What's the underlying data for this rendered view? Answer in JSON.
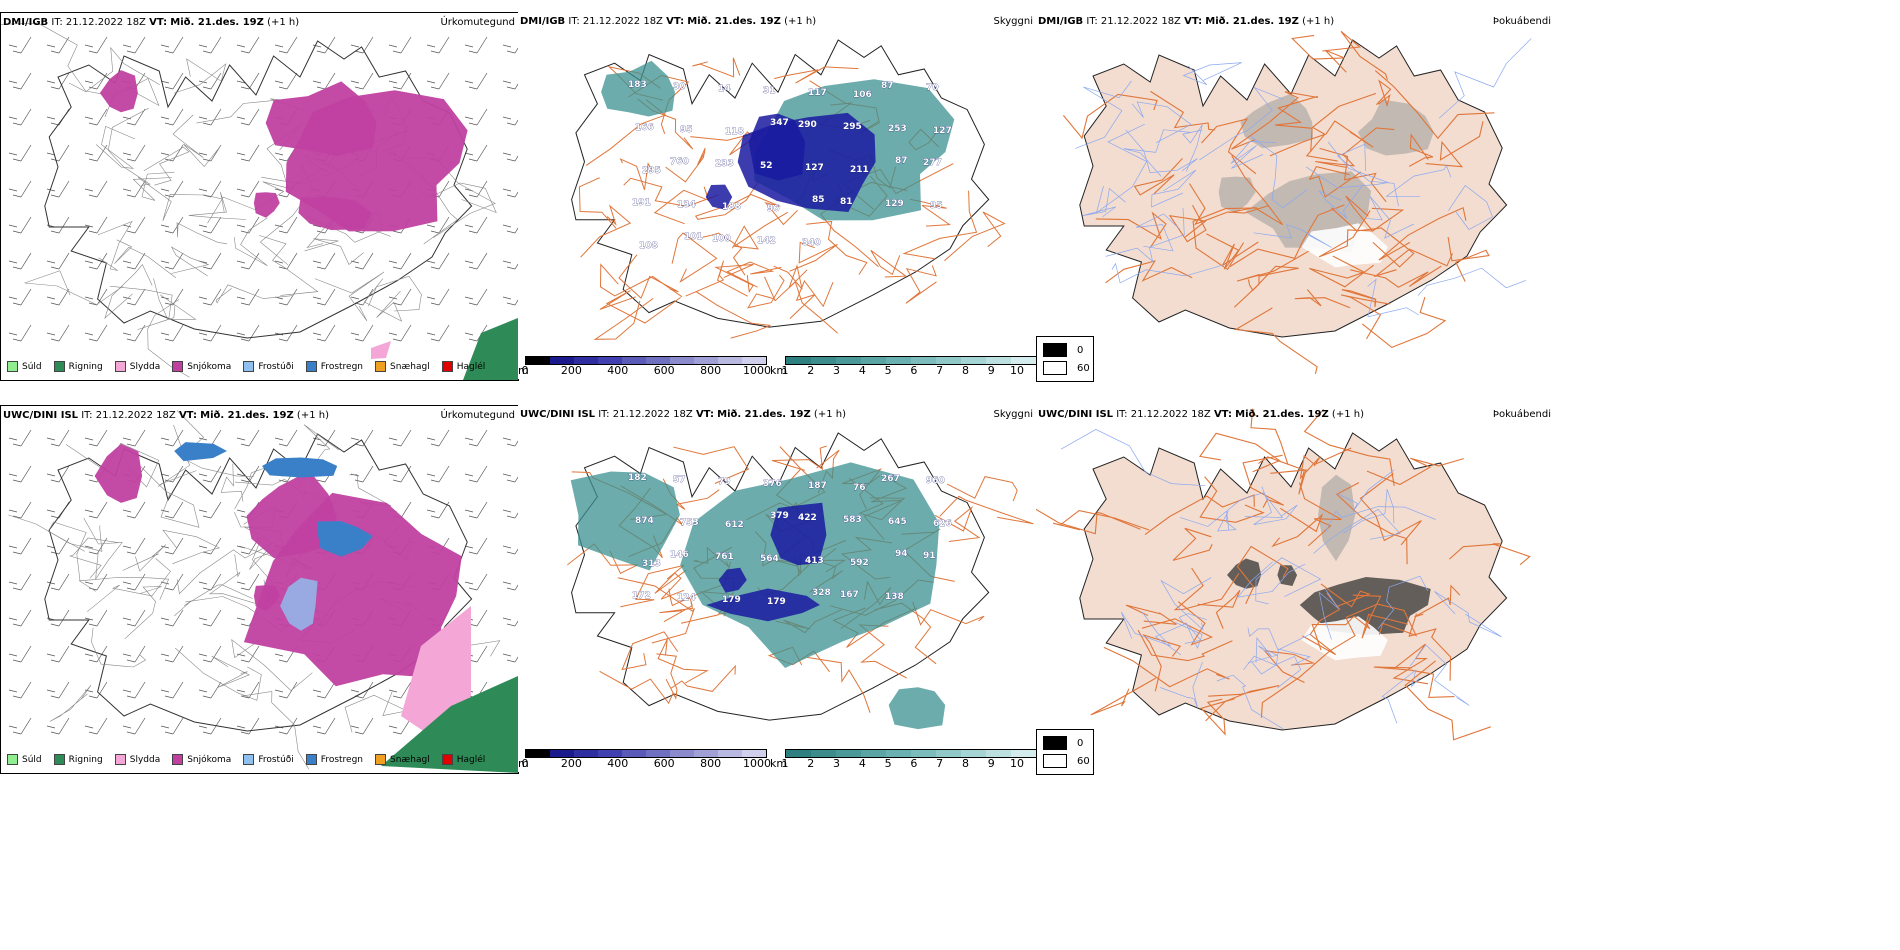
{
  "panels": [
    {
      "id": "p1",
      "model": "DMI/IGB",
      "it_label": "IT:",
      "it": "21.12.2022 18Z",
      "vt_label": "VT:",
      "vt": "Mið. 21.des. 19Z",
      "lead": "(+1 h)",
      "title": "Úrkomutegund",
      "type": "precip"
    },
    {
      "id": "p2",
      "model": "DMI/IGB",
      "it_label": "IT:",
      "it": "21.12.2022 18Z",
      "vt_label": "VT:",
      "vt": "Mið. 21.des. 19Z",
      "lead": "(+1 h)",
      "title": "Skyggni",
      "type": "visibility"
    },
    {
      "id": "p3",
      "model": "DMI/IGB",
      "it_label": "IT:",
      "it": "21.12.2022 18Z",
      "vt_label": "VT:",
      "vt": "Mið. 21.des. 19Z",
      "lead": "(+1 h)",
      "title": "Þokuábendi",
      "type": "fog"
    },
    {
      "id": "p4",
      "model": "UWC/DINI ISL",
      "it_label": "IT:",
      "it": "21.12.2022 18Z",
      "vt_label": "VT:",
      "vt": "Mið. 21.des. 19Z",
      "lead": "(+1 h)",
      "title": "Úrkomutegund",
      "type": "precip"
    },
    {
      "id": "p5",
      "model": "UWC/DINI ISL",
      "it_label": "IT:",
      "it": "21.12.2022 18Z",
      "vt_label": "VT:",
      "vt": "Mið. 21.des. 19Z",
      "lead": "(+1 h)",
      "title": "Skyggni",
      "type": "visibility"
    },
    {
      "id": "p6",
      "model": "UWC/DINI ISL",
      "it_label": "IT:",
      "it": "21.12.2022 18Z",
      "vt_label": "VT:",
      "vt": "Mið. 21.des. 19Z",
      "lead": "(+1 h)",
      "title": "Þokuábendi",
      "type": "fog"
    }
  ],
  "precip_legend": [
    {
      "label": "Súld",
      "color": "#90ee90"
    },
    {
      "label": "Rigning",
      "color": "#2e8b57"
    },
    {
      "label": "Slydda",
      "color": "#f4a6d7"
    },
    {
      "label": "Snjókoma",
      "color": "#c040a0"
    },
    {
      "label": "Frostúði",
      "color": "#8fc0f0"
    },
    {
      "label": "Frostregn",
      "color": "#3a80c8"
    },
    {
      "label": "Snæhagl",
      "color": "#f0a020"
    },
    {
      "label": "Haglél",
      "color": "#e00000"
    }
  ],
  "vis_bar_m": {
    "unit": "m",
    "ticks": [
      "0",
      "200",
      "400",
      "600",
      "800",
      "1000"
    ],
    "colors": [
      "#000000",
      "#1a1a8c",
      "#2e2ea0",
      "#4040b0",
      "#5a5ab8",
      "#7070c0",
      "#8a8acc",
      "#a0a0d6",
      "#b8b8e0",
      "#d0d0ec"
    ]
  },
  "vis_bar_km": {
    "unit": "km",
    "ticks": [
      "1",
      "2",
      "3",
      "4",
      "5",
      "6",
      "7",
      "8",
      "9",
      "10"
    ],
    "colors": [
      "#2e8080",
      "#3c8c8c",
      "#4a9898",
      "#5aa4a4",
      "#6ab0b0",
      "#7cbcbc",
      "#90c8c8",
      "#a4d4d4",
      "#bce0e0",
      "#d4ecec"
    ]
  },
  "fog_legend": [
    {
      "label": "0",
      "color": "#000000"
    },
    {
      "label": "60",
      "color": "#ffffff"
    }
  ],
  "vis_labels_top": [
    "183",
    "30",
    "14",
    "31",
    "117",
    "106",
    "87",
    "70",
    "166",
    "95",
    "118",
    "347",
    "290",
    "295",
    "253",
    "127",
    "295",
    "760",
    "233",
    "52",
    "127",
    "211",
    "87",
    "277",
    "191",
    "134",
    "188",
    "96",
    "85",
    "81",
    "129",
    "95",
    "108",
    "101",
    "100",
    "142",
    "340"
  ],
  "vis_labels_bottom": [
    "182",
    "57",
    "79",
    "376",
    "187",
    "76",
    "267",
    "960",
    "874",
    "753",
    "612",
    "379",
    "422",
    "583",
    "645",
    "626",
    "313",
    "146",
    "761",
    "564",
    "413",
    "592",
    "94",
    "91",
    "172",
    "124",
    "179",
    "179",
    "328",
    "167",
    "138"
  ],
  "colors": {
    "snow": "#c040a0",
    "rain": "#2e8b57",
    "sleet": "#f4a6d7",
    "frz": "#3a80c8",
    "frzdriz": "#8fc0f0",
    "land": "#f3ddd0",
    "road": "#e0763a",
    "river": "#8aa8f0",
    "vis_dark": "#1a1aa0",
    "vis_teal": "#3c9090"
  }
}
